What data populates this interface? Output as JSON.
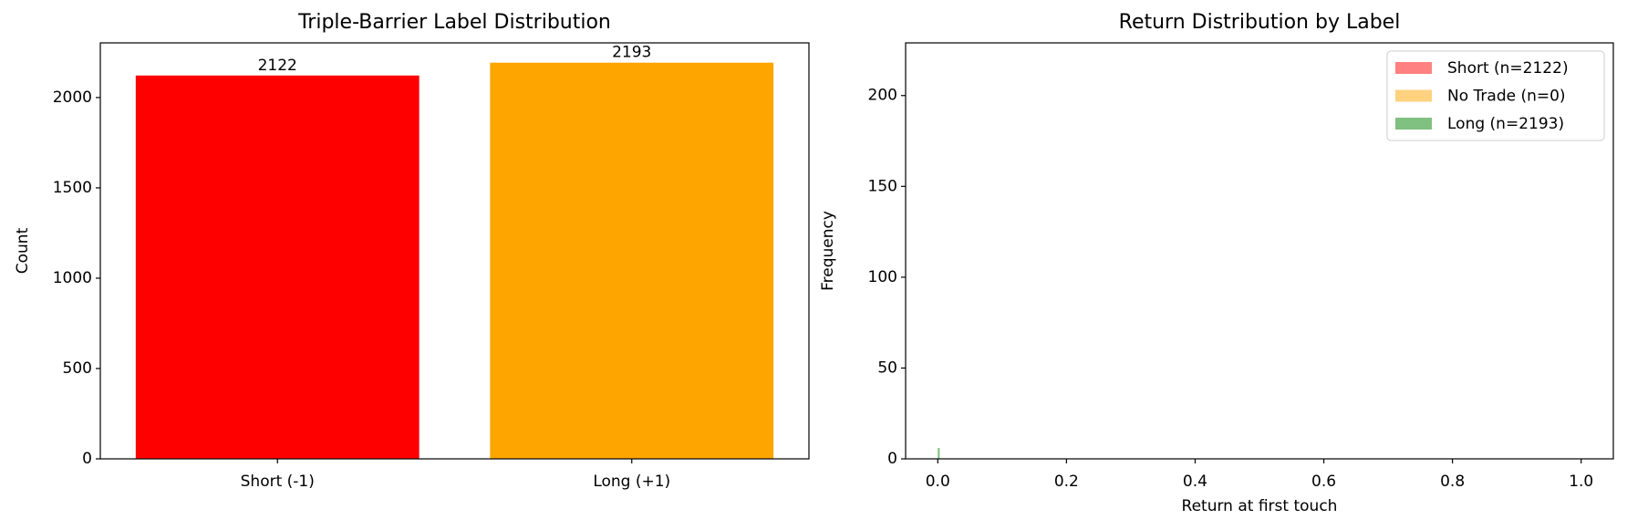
{
  "chart_data": [
    {
      "type": "bar",
      "title": "Triple-Barrier Label Distribution",
      "ylabel": "Count",
      "categories": [
        "Short (-1)",
        "Long (+1)"
      ],
      "values": [
        2122,
        2193
      ],
      "value_labels": [
        "2122",
        "2193"
      ],
      "colors": [
        "#ff0000",
        "#ffa500"
      ],
      "ylim": [
        0,
        2302.65
      ],
      "yticks": [
        0,
        500,
        1000,
        1500,
        2000
      ]
    },
    {
      "type": "histogram",
      "title": "Return Distribution by Label",
      "xlabel": "Return at first touch",
      "ylabel": "Frequency",
      "series": [
        {
          "name": "Short (n=2122)",
          "color": "#ff8080",
          "bins": [],
          "values": []
        },
        {
          "name": "No Trade (n=0)",
          "color": "#ffd280",
          "bins": [],
          "values": []
        },
        {
          "name": "Long (n=2193)",
          "color": "#80c080",
          "bins": [
            0,
            0.003
          ],
          "values": [
            6
          ]
        }
      ],
      "xlim": [
        -0.05,
        1.05
      ],
      "ylim": [
        0,
        229
      ],
      "xticks": [
        {
          "value": 0,
          "label": "0.0"
        },
        0.2,
        0.4,
        0.6,
        0.8,
        {
          "value": 1,
          "label": "1.0"
        }
      ],
      "yticks": [
        0,
        50,
        100,
        150,
        200
      ],
      "legend": "upper right"
    }
  ]
}
